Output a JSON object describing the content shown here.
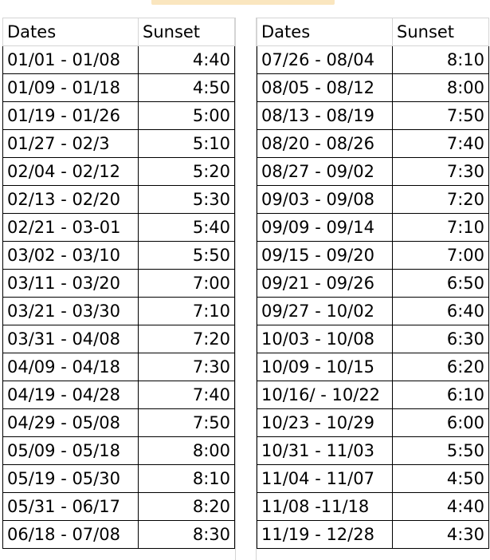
{
  "table": {
    "headers": {
      "dates": "Dates",
      "sunset": "Sunset"
    },
    "left_rows": [
      {
        "dates": "01/01 - 01/08",
        "sunset": "4:40"
      },
      {
        "dates": "01/09 - 01/18",
        "sunset": "4:50"
      },
      {
        "dates": "01/19 - 01/26",
        "sunset": "5:00"
      },
      {
        "dates": "01/27 - 02/3",
        "sunset": "5:10"
      },
      {
        "dates": "02/04 - 02/12",
        "sunset": "5:20"
      },
      {
        "dates": "02/13 - 02/20",
        "sunset": "5:30"
      },
      {
        "dates": "02/21 - 03-01",
        "sunset": "5:40"
      },
      {
        "dates": "03/02 - 03/10",
        "sunset": "5:50"
      },
      {
        "dates": "03/11 - 03/20",
        "sunset": "7:00"
      },
      {
        "dates": "03/21 - 03/30",
        "sunset": "7:10"
      },
      {
        "dates": "03/31 - 04/08",
        "sunset": "7:20"
      },
      {
        "dates": "04/09 - 04/18",
        "sunset": "7:30"
      },
      {
        "dates": "04/19 - 04/28",
        "sunset": "7:40"
      },
      {
        "dates": "04/29 - 05/08",
        "sunset": "7:50"
      },
      {
        "dates": "05/09 - 05/18",
        "sunset": "8:00"
      },
      {
        "dates": "05/19 - 05/30",
        "sunset": "8:10"
      },
      {
        "dates": "05/31 - 06/17",
        "sunset": "8:20"
      },
      {
        "dates": "06/18 - 07/08",
        "sunset": "8:30"
      }
    ],
    "right_rows": [
      {
        "dates": "07/26 - 08/04",
        "sunset": "8:10"
      },
      {
        "dates": "08/05 - 08/12",
        "sunset": "8:00"
      },
      {
        "dates": "08/13 - 08/19",
        "sunset": "7:50"
      },
      {
        "dates": "08/20 - 08/26",
        "sunset": "7:40"
      },
      {
        "dates": "08/27 - 09/02",
        "sunset": "7:30"
      },
      {
        "dates": "09/03 - 09/08",
        "sunset": "7:20"
      },
      {
        "dates": "09/09 - 09/14",
        "sunset": "7:10"
      },
      {
        "dates": "09/15 - 09/20",
        "sunset": "7:00"
      },
      {
        "dates": "09/21 - 09/26",
        "sunset": "6:50"
      },
      {
        "dates": "09/27 - 10/02",
        "sunset": "6:40"
      },
      {
        "dates": "10/03 - 10/08",
        "sunset": "6:30"
      },
      {
        "dates": "10/09 - 10/15",
        "sunset": "6:20"
      },
      {
        "dates": "10/16/ - 10/22",
        "sunset": "6:10"
      },
      {
        "dates": "10/23 - 10/29",
        "sunset": "6:00"
      },
      {
        "dates": "10/31 - 11/03",
        "sunset": "5:50"
      },
      {
        "dates": "11/04 - 11/07",
        "sunset": "4:50"
      },
      {
        "dates": "11/08 -11/18",
        "sunset": "4:40"
      },
      {
        "dates": "11/19 - 12/28",
        "sunset": "4:30"
      }
    ]
  },
  "colors": {
    "header_strip": "#f6d28a",
    "grid": "#000000",
    "light_grid": "#d4d4d4"
  }
}
